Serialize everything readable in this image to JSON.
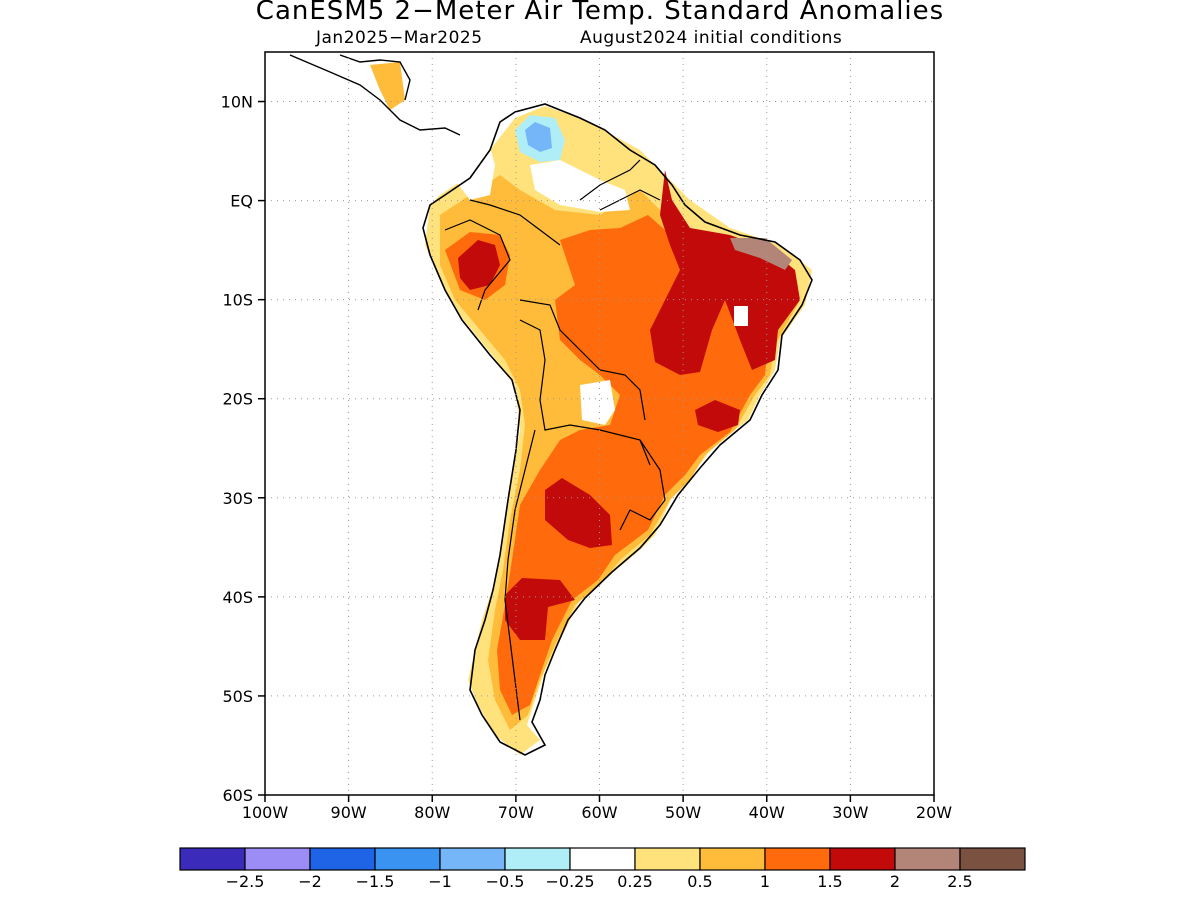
{
  "title": "CanESM5 2−Meter Air Temp. Standard Anomalies",
  "subtitle_period": "Jan2025−Mar2025",
  "subtitle_init": "August2024 initial conditions",
  "map": {
    "lon_range": [
      -100,
      -20
    ],
    "lat_range": [
      -60,
      15
    ],
    "lat_ticks": [
      {
        "value": 10,
        "label": "10N"
      },
      {
        "value": 0,
        "label": "EQ"
      },
      {
        "value": -10,
        "label": "10S"
      },
      {
        "value": -20,
        "label": "20S"
      },
      {
        "value": -30,
        "label": "30S"
      },
      {
        "value": -40,
        "label": "40S"
      },
      {
        "value": -50,
        "label": "50S"
      },
      {
        "value": -60,
        "label": "60S"
      }
    ],
    "lon_ticks": [
      {
        "value": -100,
        "label": "100W"
      },
      {
        "value": -90,
        "label": "90W"
      },
      {
        "value": -80,
        "label": "80W"
      },
      {
        "value": -70,
        "label": "70W"
      },
      {
        "value": -60,
        "label": "60W"
      },
      {
        "value": -50,
        "label": "50W"
      },
      {
        "value": -40,
        "label": "40W"
      },
      {
        "value": -30,
        "label": "30W"
      },
      {
        "value": -20,
        "label": "20W"
      }
    ],
    "grid": "dotted"
  },
  "colorbar": {
    "colors": [
      "#3a2bbb",
      "#9c8cf5",
      "#1f63e6",
      "#3a93f0",
      "#74b6f7",
      "#b0eef7",
      "#ffffff",
      "#ffe27c",
      "#ffbb3a",
      "#ff6a0c",
      "#c20a0a",
      "#b38478",
      "#7b5142"
    ],
    "labels": [
      "−2.5",
      "−2",
      "−1.5",
      "−1",
      "−0.5",
      "−0.25",
      "0.25",
      "0.5",
      "1",
      "1.5",
      "2",
      "2.5"
    ]
  },
  "colors": {
    "weak_positive": "#ffe27c",
    "positive": "#ffbb3a",
    "strong_positive": "#ff6a0c",
    "very_strong": "#c20a0a",
    "extreme": "#b38478",
    "negative_light": "#b0eef7",
    "negative": "#74b6f7"
  }
}
